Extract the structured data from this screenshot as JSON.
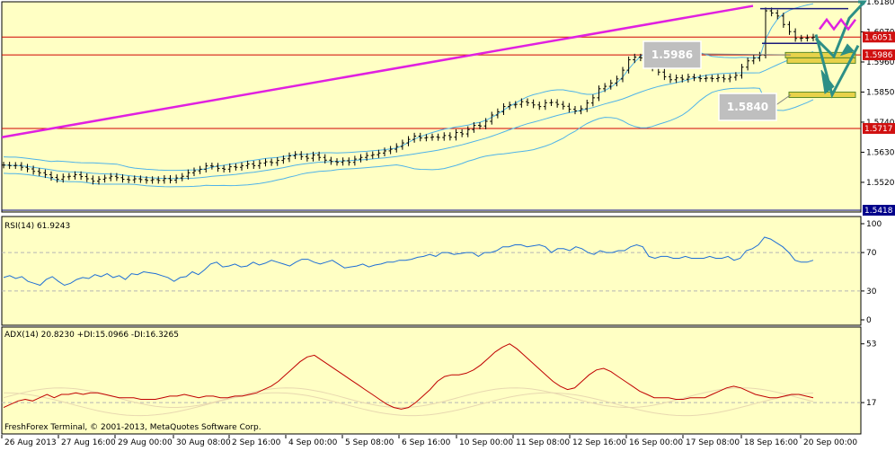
{
  "chart_data": [
    {
      "type": "candlestick",
      "panel": "price",
      "symbol_hint": "",
      "yticks": [
        "1.6180",
        "1.6070",
        "1.5960",
        "1.5850",
        "1.5740",
        "1.5630",
        "1.5520"
      ],
      "ylim": [
        1.5418,
        1.618
      ],
      "grid": true,
      "price_labels": [
        {
          "text": "1.6051",
          "value": 1.6051,
          "style": "red"
        },
        {
          "text": "1.5986",
          "value": 1.5986,
          "style": "red"
        },
        {
          "text": "1.5717",
          "value": 1.5717,
          "style": "red"
        },
        {
          "text": "1.5418",
          "value": 1.5418,
          "style": "blue"
        }
      ],
      "horizontal_levels": [
        {
          "value": 1.6051,
          "color": "#d00000"
        },
        {
          "value": 1.5986,
          "color": "#d00000"
        },
        {
          "value": 1.5717,
          "color": "#d00000"
        },
        {
          "value": 1.5418,
          "color": "#00008b"
        }
      ],
      "annotation_boxes": [
        {
          "text": "1.5986",
          "value": 1.5986
        },
        {
          "text": "1.5840",
          "value": 1.584
        }
      ],
      "trendline_color": "#e020e0",
      "band_color": "#4fb3e8",
      "close_series": [
        1.5583,
        1.5581,
        1.5582,
        1.5575,
        1.5569,
        1.556,
        1.5555,
        1.5548,
        1.5538,
        1.5531,
        1.554,
        1.5542,
        1.5548,
        1.5541,
        1.5533,
        1.5524,
        1.5531,
        1.5536,
        1.5542,
        1.5537,
        1.5531,
        1.5529,
        1.5533,
        1.553,
        1.5527,
        1.553,
        1.5527,
        1.5534,
        1.5528,
        1.5536,
        1.5542,
        1.5555,
        1.5562,
        1.5568,
        1.558,
        1.5579,
        1.5571,
        1.5568,
        1.5577,
        1.5575,
        1.5581,
        1.5587,
        1.5581,
        1.559,
        1.5595,
        1.5592,
        1.56,
        1.5606,
        1.5617,
        1.5622,
        1.5614,
        1.5608,
        1.562,
        1.5611,
        1.5601,
        1.5596,
        1.5593,
        1.5599,
        1.5593,
        1.5605,
        1.5611,
        1.5618,
        1.5621,
        1.5627,
        1.5635,
        1.5641,
        1.5651,
        1.5664,
        1.5677,
        1.5689,
        1.5682,
        1.5684,
        1.5686,
        1.5684,
        1.5691,
        1.5685,
        1.5702,
        1.5697,
        1.5713,
        1.5728,
        1.5726,
        1.5743,
        1.5766,
        1.5778,
        1.5797,
        1.5803,
        1.5805,
        1.5815,
        1.5811,
        1.5803,
        1.5797,
        1.5811,
        1.5812,
        1.5805,
        1.5798,
        1.5787,
        1.5781,
        1.5789,
        1.581,
        1.5829,
        1.5862,
        1.5871,
        1.5883,
        1.5898,
        1.593,
        1.5968,
        1.5978,
        1.5975,
        1.5964,
        1.5938,
        1.5923,
        1.5906,
        1.5895,
        1.5902,
        1.5897,
        1.5905,
        1.5902,
        1.5899,
        1.5901,
        1.5899,
        1.5903,
        1.5898,
        1.5904,
        1.5911,
        1.5941,
        1.5964,
        1.5974,
        1.5985,
        1.6147,
        1.6139,
        1.6128,
        1.6097,
        1.6071,
        1.6046,
        1.6047,
        1.6048,
        1.6051
      ],
      "projection_note": ""
    },
    {
      "type": "line",
      "panel": "rsi",
      "label": "RSI(14) 61.9243",
      "yticks": [
        "100",
        "70",
        "30",
        "0"
      ],
      "ylim": [
        0,
        100
      ],
      "levels": [
        70,
        30
      ],
      "color": "#1f6fd6",
      "values": [
        44,
        46,
        43,
        45,
        40,
        38,
        36,
        42,
        45,
        40,
        36,
        38,
        42,
        44,
        43,
        47,
        45,
        48,
        44,
        46,
        42,
        48,
        47,
        50,
        49,
        48,
        46,
        44,
        40,
        44,
        45,
        50,
        47,
        52,
        58,
        60,
        55,
        56,
        58,
        55,
        56,
        60,
        57,
        59,
        62,
        60,
        58,
        56,
        60,
        63,
        63,
        60,
        58,
        60,
        62,
        58,
        54,
        55,
        56,
        58,
        55,
        57,
        58,
        60,
        60,
        62,
        62,
        63,
        65,
        66,
        68,
        66,
        70,
        70,
        68,
        69,
        70,
        70,
        66,
        70,
        70,
        72,
        76,
        76,
        78,
        78,
        76,
        77,
        78,
        76,
        70,
        74,
        74,
        72,
        76,
        74,
        70,
        68,
        72,
        70,
        70,
        72,
        72,
        76,
        78,
        76,
        66,
        64,
        66,
        66,
        64,
        64,
        66,
        64,
        64,
        64,
        66,
        64,
        64,
        66,
        62,
        64,
        72,
        74,
        78,
        86,
        84,
        80,
        76,
        70,
        62,
        60,
        60,
        62
      ]
    },
    {
      "type": "line",
      "panel": "adx",
      "label": "ADX(14) 20.8230 +DI:15.0966 -DI:16.3265",
      "yticks": [
        "53",
        "17"
      ],
      "ylim": [
        0,
        60
      ],
      "color": "#c00000",
      "values": [
        14,
        16,
        18,
        19,
        18,
        20,
        22,
        20,
        22,
        22,
        23,
        22,
        23,
        23,
        22,
        21,
        20,
        20,
        20,
        19,
        19,
        19,
        20,
        21,
        21,
        22,
        21,
        20,
        21,
        21,
        20,
        20,
        21,
        21,
        22,
        23,
        25,
        27,
        30,
        34,
        38,
        42,
        45,
        46,
        43,
        40,
        37,
        34,
        31,
        28,
        25,
        22,
        19,
        16,
        14,
        13,
        14,
        17,
        21,
        25,
        30,
        33,
        34,
        34,
        35,
        37,
        40,
        44,
        48,
        51,
        53,
        50,
        46,
        42,
        38,
        34,
        30,
        27,
        25,
        26,
        30,
        34,
        37,
        38,
        36,
        33,
        30,
        27,
        24,
        22,
        20,
        20,
        20,
        19,
        19,
        20,
        20,
        20,
        22,
        24,
        26,
        27,
        26,
        24,
        22,
        21,
        20,
        20,
        21,
        22,
        22,
        21,
        20
      ]
    }
  ],
  "x_labels": [
    "26 Aug 2013",
    "27 Aug 16:00",
    "29 Aug 00:00",
    "30 Aug 08:00",
    "2 Sep 16:00",
    "4 Sep 00:00",
    "5 Sep 08:00",
    "6 Sep 16:00",
    "10 Sep 00:00",
    "11 Sep 08:00",
    "12 Sep 16:00",
    "16 Sep 00:00",
    "17 Sep 08:00",
    "18 Sep 16:00",
    "20 Sep 00:00"
  ],
  "footer": "FreshForex Terminal, © 2001-2013, MetaQuotes Software Corp.",
  "colors": {
    "background": "#ffffc4",
    "axis": "#000000",
    "grid": "#b5b5b5",
    "red_label": "#d01010",
    "blue_label": "#00008b",
    "arrow": "#2d8f86",
    "box": "#bfbfbf"
  }
}
